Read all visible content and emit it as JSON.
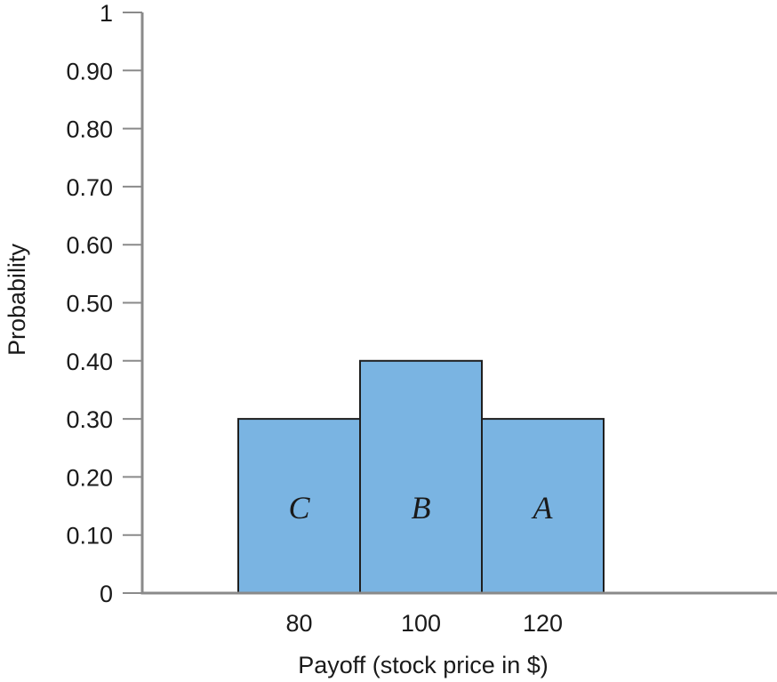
{
  "chart_data": {
    "type": "bar",
    "title": "",
    "xlabel": "Payoff (stock price in $)",
    "ylabel": "Probability",
    "categories": [
      "80",
      "100",
      "120"
    ],
    "values": [
      0.3,
      0.4,
      0.3
    ],
    "bar_labels": [
      "C",
      "B",
      "A"
    ],
    "ylim": [
      0,
      1
    ],
    "yticks": [
      0,
      0.1,
      0.2,
      0.3,
      0.4,
      0.5,
      0.6,
      0.7,
      0.8,
      0.9,
      1
    ],
    "ytick_labels": [
      "0",
      "0.10",
      "0.20",
      "0.30",
      "0.40",
      "0.50",
      "0.60",
      "0.70",
      "0.80",
      "0.90",
      "1"
    ],
    "grid": false,
    "bar_color": "#7ab4e2",
    "edge_color": "#1f1f1f",
    "axis_color": "#8a8a8a"
  }
}
